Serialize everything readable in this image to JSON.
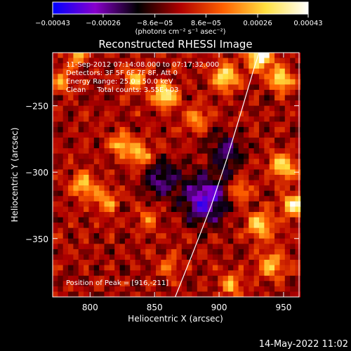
{
  "chart_data": {
    "type": "heatmap",
    "title": "Reconstructed RHESSI Image",
    "xlabel": "Heliocentric X (arcsec)",
    "ylabel": "Heliocentric Y (arcsec)",
    "xlim": [
      771,
      962
    ],
    "ylim": [
      -394,
      -210
    ],
    "x_ticks": [
      800,
      850,
      900,
      950
    ],
    "x_tick_labels": [
      "800",
      "850",
      "900",
      "950"
    ],
    "y_ticks": [
      -250,
      -300,
      -350
    ],
    "y_tick_labels": [
      "−250",
      "−300",
      "−350"
    ],
    "colorbar": {
      "range": [
        -0.00043,
        0.00043
      ],
      "ticks": [
        -0.00043,
        -0.00026,
        -8.6e-05,
        8.6e-05,
        0.00026,
        0.00043
      ],
      "tick_labels": [
        "−0.00043",
        "−0.00026",
        "−8.6e−05",
        "8.6e−05",
        "0.00026",
        "0.00043"
      ],
      "unit_label": "(photons cm⁻² s⁻¹ asec⁻²)",
      "colormap": [
        "#0000ff",
        "#8800cc",
        "#000000",
        "#b00000",
        "#ff6000",
        "#ffe040",
        "#ffffff"
      ]
    },
    "annotations": [
      "11-Sep-2012 07:14:08.000 to 07:17:32.000",
      "Detectors: 3F 5F 6F 7F 8F, Att 0",
      "Energy Range: 25.0 - 50.0 keV",
      "Clean     Total counts: 3.55E+03",
      "Position of Peak = [916,-211]"
    ],
    "peak": [
      916,
      -211
    ],
    "limb_curve": [
      [
        866,
        -394
      ],
      [
        880,
        -360
      ],
      [
        894,
        -325
      ],
      [
        906,
        -290
      ],
      [
        917,
        -255
      ],
      [
        927,
        -222
      ],
      [
        931,
        -210
      ]
    ],
    "bright_regions": [
      {
        "x": 932,
        "y": -213,
        "intensity": 1.0,
        "sigma": 7
      },
      {
        "x": 948,
        "y": -230,
        "intensity": 0.8,
        "sigma": 6
      },
      {
        "x": 905,
        "y": -228,
        "intensity": 0.75,
        "sigma": 7
      },
      {
        "x": 858,
        "y": -242,
        "intensity": 0.9,
        "sigma": 6
      },
      {
        "x": 835,
        "y": -230,
        "intensity": 0.6,
        "sigma": 6
      },
      {
        "x": 882,
        "y": -260,
        "intensity": 0.55,
        "sigma": 6
      },
      {
        "x": 825,
        "y": -280,
        "intensity": 0.7,
        "sigma": 6
      },
      {
        "x": 840,
        "y": -287,
        "intensity": 0.65,
        "sigma": 6
      },
      {
        "x": 795,
        "y": -310,
        "intensity": 0.7,
        "sigma": 6
      },
      {
        "x": 812,
        "y": -322,
        "intensity": 0.55,
        "sigma": 6
      },
      {
        "x": 778,
        "y": -232,
        "intensity": 0.6,
        "sigma": 5
      },
      {
        "x": 790,
        "y": -212,
        "intensity": 0.6,
        "sigma": 5
      },
      {
        "x": 845,
        "y": -335,
        "intensity": 0.4,
        "sigma": 6
      },
      {
        "x": 862,
        "y": -372,
        "intensity": 0.45,
        "sigma": 5
      },
      {
        "x": 950,
        "y": -295,
        "intensity": 0.75,
        "sigma": 7
      },
      {
        "x": 958,
        "y": -325,
        "intensity": 0.9,
        "sigma": 6
      },
      {
        "x": 932,
        "y": -340,
        "intensity": 0.7,
        "sigma": 7
      },
      {
        "x": 915,
        "y": -315,
        "intensity": 0.55,
        "sigma": 6
      },
      {
        "x": 940,
        "y": -370,
        "intensity": 0.6,
        "sigma": 7
      },
      {
        "x": 910,
        "y": -385,
        "intensity": 0.55,
        "sigma": 6
      }
    ],
    "dark_regions": [
      {
        "x": 890,
        "y": -320,
        "intensity": 0.8,
        "sigma": 12
      },
      {
        "x": 855,
        "y": -305,
        "intensity": 0.5,
        "sigma": 10
      },
      {
        "x": 905,
        "y": -285,
        "intensity": 0.5,
        "sigma": 9
      }
    ]
  },
  "footer": {
    "timestamp": "14-May-2022 11:02"
  }
}
